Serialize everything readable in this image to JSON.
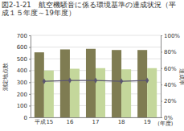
{
  "chart_data": {
    "type": "bar",
    "title": "図2-1-21　航空機騒音に係る環境基準の達成状況（平成１５年度～19年度）",
    "categories": [
      "平成15",
      "16",
      "17",
      "18",
      "19"
    ],
    "x_label": "(年度)",
    "y_label": "測定地点数",
    "y2_label": "達成率",
    "series": [
      {
        "type": "bar",
        "color": "#7f7c52",
        "values": [
          555,
          580,
          585,
          575,
          575
        ]
      },
      {
        "type": "bar",
        "color": "#c4d79b",
        "values": [
          400,
          415,
          420,
          410,
          420
        ]
      },
      {
        "type": "line",
        "axis": "y2",
        "color": "#5b5670",
        "marker": "diamond",
        "line_style": "solid",
        "values": [
          44,
          45,
          45,
          44,
          45
        ]
      }
    ],
    "ylim": [
      0,
      700
    ],
    "yticks": [
      0,
      100,
      200,
      300,
      400,
      500,
      600,
      700
    ],
    "y2lim": [
      0,
      100
    ],
    "y2ticks": [
      {
        "value": 0,
        "label": "0%"
      },
      {
        "value": 20,
        "label": "20%"
      },
      {
        "value": 40,
        "label": "40%"
      },
      {
        "value": 60,
        "label": "60%"
      },
      {
        "value": 80,
        "label": "80%"
      },
      {
        "value": 100,
        "label": "100%"
      }
    ],
    "grid": true
  }
}
